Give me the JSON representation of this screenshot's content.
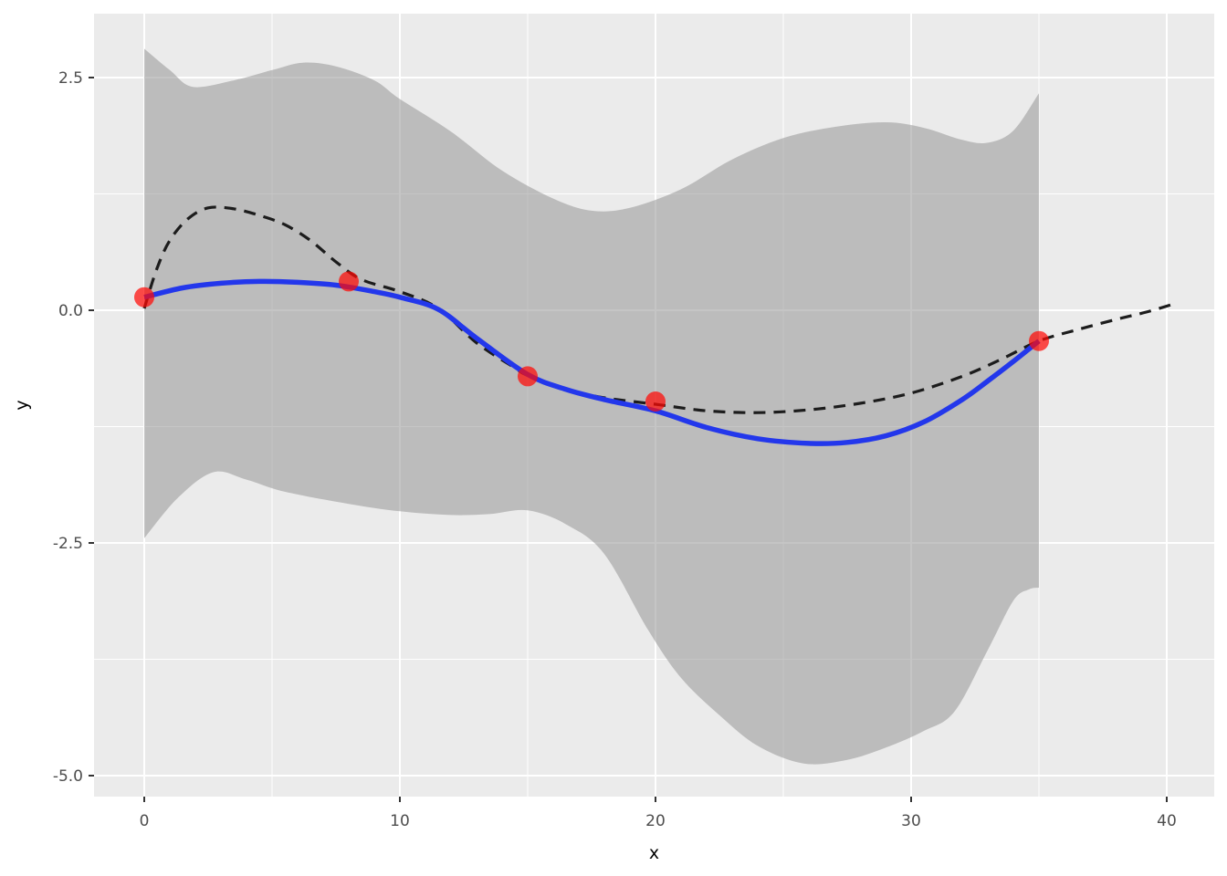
{
  "chart_data": {
    "type": "line",
    "title": "",
    "xlabel": "x",
    "ylabel": "y",
    "panel_bg": "#EBEBEB",
    "grid_color": "#FFFFFF",
    "tick_color": "#333333",
    "tick_label_color": "#4D4D4D",
    "axis_title_color": "#000000",
    "x_axis": {
      "range": [
        -1.9643,
        41.8571
      ],
      "ticks": [
        {
          "value": 0,
          "label": "0"
        },
        {
          "value": 10,
          "label": "10"
        },
        {
          "value": 20,
          "label": "20"
        },
        {
          "value": 30,
          "label": "30"
        },
        {
          "value": 40,
          "label": "40"
        }
      ],
      "minor": [
        5,
        15,
        25,
        35
      ]
    },
    "y_axis": {
      "range": [
        -5.2255,
        3.1863
      ],
      "ticks": [
        {
          "value": 2.5,
          "label": "2.5"
        },
        {
          "value": 0.0,
          "label": "0.0"
        },
        {
          "value": -2.5,
          "label": "-2.5"
        },
        {
          "value": -5.0,
          "label": "-5.0"
        }
      ],
      "minor": [
        1.25,
        -1.25,
        -3.75
      ]
    },
    "ribbon": {
      "name": "confidence-band",
      "color": "#999999",
      "opacity": 0.57,
      "x_extent": [
        0,
        35
      ],
      "upper": [
        [
          0,
          2.81
        ],
        [
          1,
          2.58
        ],
        [
          1.9,
          2.4
        ],
        [
          3.5,
          2.47
        ],
        [
          5,
          2.58
        ],
        [
          6.2,
          2.66
        ],
        [
          7.5,
          2.62
        ],
        [
          9,
          2.47
        ],
        [
          10,
          2.27
        ],
        [
          12,
          1.92
        ],
        [
          14,
          1.5
        ],
        [
          16,
          1.2
        ],
        [
          17.5,
          1.07
        ],
        [
          19,
          1.1
        ],
        [
          21,
          1.3
        ],
        [
          23,
          1.62
        ],
        [
          25,
          1.85
        ],
        [
          27,
          1.97
        ],
        [
          29,
          2.02
        ],
        [
          30.5,
          1.96
        ],
        [
          32,
          1.83
        ],
        [
          33,
          1.8
        ],
        [
          34,
          1.93
        ],
        [
          35,
          2.33
        ]
      ],
      "lower": [
        [
          0,
          -2.45
        ],
        [
          1.3,
          -2.02
        ],
        [
          2.7,
          -1.74
        ],
        [
          4,
          -1.82
        ],
        [
          5.5,
          -1.95
        ],
        [
          8,
          -2.08
        ],
        [
          10,
          -2.16
        ],
        [
          12,
          -2.2
        ],
        [
          13.5,
          -2.19
        ],
        [
          15,
          -2.15
        ],
        [
          16.5,
          -2.3
        ],
        [
          18,
          -2.62
        ],
        [
          19.7,
          -3.43
        ],
        [
          21,
          -3.95
        ],
        [
          22.5,
          -4.35
        ],
        [
          24,
          -4.68
        ],
        [
          25.8,
          -4.87
        ],
        [
          27.5,
          -4.83
        ],
        [
          29,
          -4.7
        ],
        [
          30.5,
          -4.52
        ],
        [
          31.7,
          -4.31
        ],
        [
          33,
          -3.65
        ],
        [
          34,
          -3.12
        ],
        [
          34.6,
          -3.0
        ],
        [
          35,
          -2.98
        ]
      ]
    },
    "lines": [
      {
        "name": "true-function-dashed",
        "style": "dashed",
        "color": "#1C1C1C",
        "width": 3.2,
        "dash": "13 9",
        "points": [
          [
            0,
            0.02
          ],
          [
            0.5,
            0.45
          ],
          [
            1,
            0.75
          ],
          [
            1.7,
            0.98
          ],
          [
            2.5,
            1.1
          ],
          [
            3.5,
            1.09
          ],
          [
            4.5,
            1.02
          ],
          [
            5.5,
            0.92
          ],
          [
            6.5,
            0.75
          ],
          [
            7.5,
            0.52
          ],
          [
            8.5,
            0.33
          ],
          [
            10,
            0.2
          ],
          [
            11.5,
            0.02
          ],
          [
            13,
            -0.35
          ],
          [
            14.5,
            -0.62
          ],
          [
            15,
            -0.7
          ],
          [
            16.5,
            -0.85
          ],
          [
            18,
            -0.94
          ],
          [
            20,
            -1.01
          ],
          [
            22,
            -1.08
          ],
          [
            24,
            -1.1
          ],
          [
            26,
            -1.07
          ],
          [
            28,
            -1.0
          ],
          [
            30,
            -0.89
          ],
          [
            32,
            -0.71
          ],
          [
            33.5,
            -0.53
          ],
          [
            35,
            -0.33
          ],
          [
            36.5,
            -0.21
          ],
          [
            38,
            -0.1
          ],
          [
            39.2,
            -0.02
          ],
          [
            40.3,
            0.07
          ]
        ]
      },
      {
        "name": "smooth-fit",
        "style": "solid",
        "color": "#2337EB",
        "width": 5.5,
        "dash": null,
        "points": [
          [
            0,
            0.14
          ],
          [
            1.5,
            0.24
          ],
          [
            3,
            0.29
          ],
          [
            4.5,
            0.31
          ],
          [
            6,
            0.3
          ],
          [
            7.5,
            0.27
          ],
          [
            9,
            0.2
          ],
          [
            10,
            0.14
          ],
          [
            11.5,
            0.01
          ],
          [
            13,
            -0.3
          ],
          [
            15,
            -0.69
          ],
          [
            16.5,
            -0.85
          ],
          [
            18,
            -0.96
          ],
          [
            20,
            -1.08
          ],
          [
            22,
            -1.26
          ],
          [
            24,
            -1.38
          ],
          [
            26,
            -1.43
          ],
          [
            27.5,
            -1.42
          ],
          [
            29,
            -1.35
          ],
          [
            30.5,
            -1.2
          ],
          [
            32,
            -0.96
          ],
          [
            33,
            -0.76
          ],
          [
            34,
            -0.55
          ],
          [
            35,
            -0.33
          ]
        ]
      }
    ],
    "points": {
      "name": "data-points",
      "color": "#FF0A05",
      "opacity": 0.72,
      "radius": 11,
      "xy": [
        [
          0,
          0.14
        ],
        [
          8,
          0.31
        ],
        [
          15,
          -0.71
        ],
        [
          20,
          -0.98
        ],
        [
          35,
          -0.33
        ]
      ]
    }
  }
}
